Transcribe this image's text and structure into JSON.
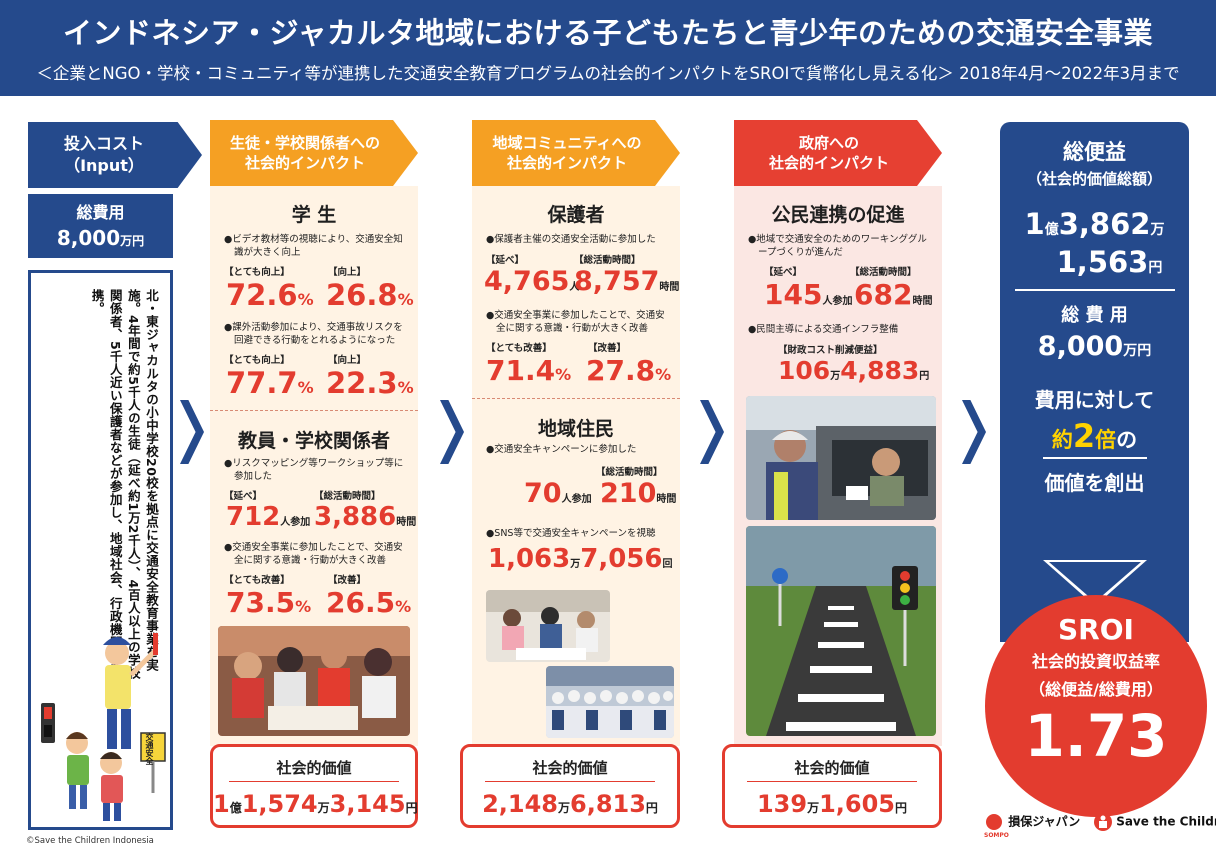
{
  "header": {
    "title": "インドネシア・ジャカルタ地域における子どもたちと青少年のための交通安全事業",
    "subtitle": "＜企業とNGO・学校・コミュニティ等が連携した交通安全教育プログラムの社会的インパクトをSROIで貨幣化し見える化＞ 2018年4月～2022年3月まで"
  },
  "input": {
    "tab_line1": "投入コスト",
    "tab_line2": "（Input）",
    "cost_label": "総費用",
    "cost_value": "8,000",
    "cost_unit": "万円",
    "description": "北・東ジャカルタの小中学校20校を拠点に交通安全教育事業を実施。4年間で約5千人の生徒（延べ約1万2千人）、4百人以上の学校関係者、5千人近い保護者などが参加し、地域社会、行政機関とも連携。",
    "sign_text": "交通安全",
    "copyright": "©Save the Children Indonesia"
  },
  "col1": {
    "tab_line1": "生徒・学校関係者への",
    "tab_line2": "社会的インパクト",
    "students": {
      "title": "学 生",
      "b1": "ビデオ教材等の視聴により、交通安全知識が大きく向上",
      "b1_l1": "【とても向上】",
      "b1_v1": "72.6",
      "b1_l2": "【向上】",
      "b1_v2": "26.8",
      "b2": "課外活動参加により、交通事故リスクを回避できる行動をとれるようになった",
      "b2_l1": "【とても向上】",
      "b2_v1": "77.7",
      "b2_l2": "【向上】",
      "b2_v2": "22.3"
    },
    "teachers": {
      "title": "教員・学校関係者",
      "b1": "リスクマッピング等ワークショップ等に参加した",
      "b1_l1": "【延べ】",
      "b1_v1": "712",
      "b1_u1": "人参加",
      "b1_l2": "【総活動時間】",
      "b1_v2": "3,886",
      "b1_u2": "時間",
      "b2": "交通安全事業に参加したことで、交通安全に関する意識・行動が大きく改善",
      "b2_l1": "【とても改善】",
      "b2_v1": "73.5",
      "b2_l2": "【改善】",
      "b2_v2": "26.5"
    },
    "value_title": "社会的価値",
    "value": {
      "a": "1",
      "au": "億",
      "b": "1,574",
      "bu": "万",
      "c": "3,145",
      "cu": "円"
    }
  },
  "col2": {
    "tab_line1": "地域コミュニティへの",
    "tab_line2": "社会的インパクト",
    "parents": {
      "title": "保護者",
      "b1": "保護者主催の交通安全活動に参加した",
      "b1_l1": "【延べ】",
      "b1_v1": "4,765",
      "b1_u1": "人",
      "b1_l2": "【総活動時間】",
      "b1_v2": "8,757",
      "b1_u2": "時間",
      "b2": "交通安全事業に参加したことで、交通安全に関する意識・行動が大きく改善",
      "b2_l1": "【とても改善】",
      "b2_v1": "71.4",
      "b2_l2": "【改善】",
      "b2_v2": "27.8"
    },
    "residents": {
      "title": "地域住民",
      "b1": "交通安全キャンペーンに参加した",
      "b1_l2": "【総活動時間】",
      "b1_v1": "70",
      "b1_u1": "人参加",
      "b1_v2": "210",
      "b1_u2": "時間",
      "b2": "SNS等で交通安全キャンペーンを視聴",
      "b2_v1": "1,063",
      "b2_u1": "万",
      "b2_v2": "7,056",
      "b2_u2": "回"
    },
    "value_title": "社会的価値",
    "value": {
      "a": "2,148",
      "au": "万",
      "b": "6,813",
      "bu": "円"
    }
  },
  "col3": {
    "tab_line1": "政府への",
    "tab_line2": "社会的インパクト",
    "ppp": {
      "title": "公民連携の促進",
      "b1": "地域で交通安全のためのワーキンググループづくりが進んだ",
      "b1_l1": "【延べ】",
      "b1_v1": "145",
      "b1_u1": "人参加",
      "b1_l2": "【総活動時間】",
      "b1_v2": "682",
      "b1_u2": "時間",
      "b2": "民間主導による交通インフラ整備",
      "b2_l1": "【財政コスト削減便益】",
      "b2_v1": "106",
      "b2_u1": "万",
      "b2_v2": "4,883",
      "b2_u2": "円"
    },
    "value_title": "社会的価値",
    "value": {
      "a": "139",
      "au": "万",
      "b": "1,605",
      "bu": "円"
    }
  },
  "total": {
    "title": "総便益",
    "subtitle": "（社会的価値総額）",
    "v1": "1",
    "v1u": "億",
    "v2": "3,862",
    "v2u": "万",
    "v3": "1,563",
    "v3u": "円",
    "cost_label": "総 費 用",
    "cost_value": "8,000",
    "cost_unit": "万円",
    "msg1": "費用に対して",
    "msg2a": "約",
    "msg2b": "2",
    "msg2c": "倍",
    "msg2d": "の",
    "msg3": "価値を創出"
  },
  "sroi": {
    "title": "SROI",
    "line1": "社会的投資収益率",
    "line2": "（総便益/総費用）",
    "value": "1.73"
  },
  "logos": {
    "sompo": "損保ジャパン",
    "sompo_small": "SOMPO",
    "stc": "Save the Children"
  },
  "colors": {
    "navy": "#254a8c",
    "orange": "#f5a023",
    "red": "#e33c2f",
    "panel_beige": "#fff3e4",
    "panel_pink": "#fbe7e3",
    "yellow": "#ffd200"
  }
}
